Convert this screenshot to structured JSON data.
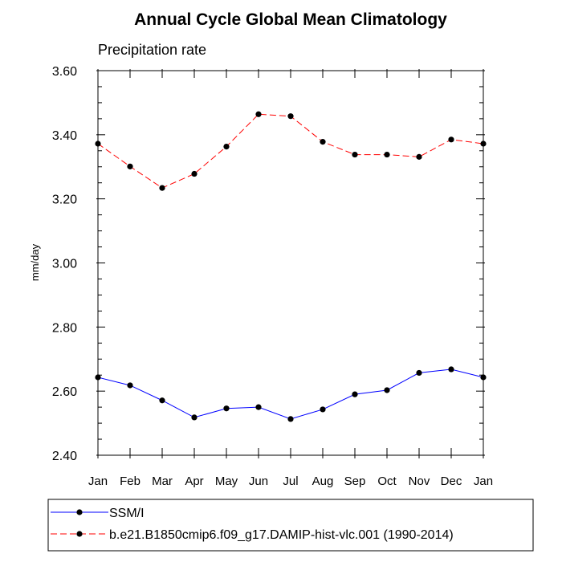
{
  "chart_data": {
    "type": "line",
    "title": "Annual Cycle Global Mean Climatology",
    "subtitle": "Precipitation rate",
    "xlabel": "",
    "ylabel": "mm/day",
    "categories": [
      "Jan",
      "Feb",
      "Mar",
      "Apr",
      "May",
      "Jun",
      "Jul",
      "Aug",
      "Sep",
      "Oct",
      "Nov",
      "Dec",
      "Jan"
    ],
    "ylim": [
      2.4,
      3.6
    ],
    "yticks": [
      "2.40",
      "2.60",
      "2.80",
      "3.00",
      "3.20",
      "3.40",
      "3.60"
    ],
    "grid": false,
    "legend_position": "bottom",
    "series": [
      {
        "name": "SSM/I",
        "color": "#0000ff",
        "line_style": "solid",
        "marker": "filled-circle",
        "values": [
          2.643,
          2.618,
          2.571,
          2.518,
          2.546,
          2.55,
          2.513,
          2.543,
          2.59,
          2.603,
          2.657,
          2.668,
          2.643
        ]
      },
      {
        "name": "b.e21.B1850cmip6.f09_g17.DAMIP-hist-vlc.001 (1990-2014)",
        "color": "#ff0000",
        "line_style": "dashed",
        "marker": "filled-circle",
        "values": [
          3.372,
          3.301,
          3.234,
          3.278,
          3.363,
          3.464,
          3.458,
          3.378,
          3.338,
          3.338,
          3.331,
          3.385,
          3.372
        ]
      }
    ]
  }
}
